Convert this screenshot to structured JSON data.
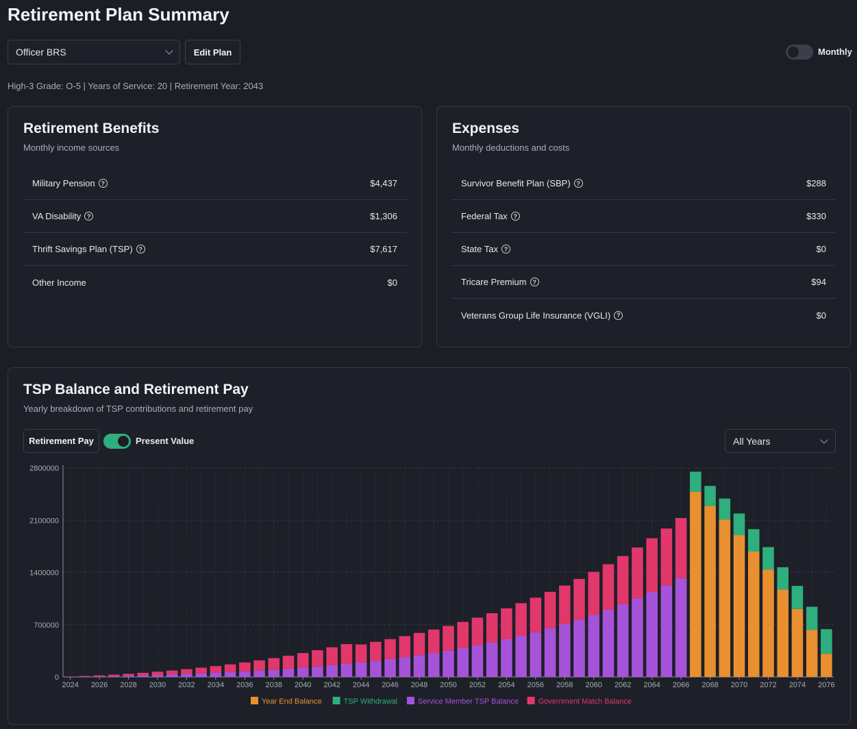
{
  "page": {
    "title": "Retirement Plan Summary",
    "summary": "High-3 Grade: O-5 | Years of Service: 20 | Retirement Year: 2043"
  },
  "controls": {
    "plan_select": "Officer BRS",
    "edit_plan": "Edit Plan",
    "monthly_label": "Monthly",
    "monthly_on": false
  },
  "benefits": {
    "title": "Retirement Benefits",
    "subtitle": "Monthly income sources",
    "rows": [
      {
        "label": "Military Pension",
        "value": "$4,437",
        "help": true
      },
      {
        "label": "VA Disability",
        "value": "$1,306",
        "help": true
      },
      {
        "label": "Thrift Savings Plan (TSP)",
        "value": "$7,617",
        "help": true
      },
      {
        "label": "Other Income",
        "value": "$0",
        "help": false
      }
    ]
  },
  "expenses": {
    "title": "Expenses",
    "subtitle": "Monthly deductions and costs",
    "rows": [
      {
        "label": "Survivor Benefit Plan (SBP)",
        "value": "$288",
        "help": true
      },
      {
        "label": "Federal Tax",
        "value": "$330",
        "help": true
      },
      {
        "label": "State Tax",
        "value": "$0",
        "help": true
      },
      {
        "label": "Tricare Premium",
        "value": "$94",
        "help": true
      },
      {
        "label": "Veterans Group Life Insurance (VGLI)",
        "value": "$0",
        "help": true
      }
    ]
  },
  "tsp_chart": {
    "title": "TSP Balance and Retirement Pay",
    "subtitle": "Yearly breakdown of TSP contributions and retirement pay",
    "retirement_pay_button": "Retirement Pay",
    "present_value_label": "Present Value",
    "present_value_on": true,
    "range_select": "All Years"
  },
  "chart_data": {
    "type": "bar",
    "stacked": true,
    "x": [
      2024,
      2025,
      2026,
      2027,
      2028,
      2029,
      2030,
      2031,
      2032,
      2033,
      2034,
      2035,
      2036,
      2037,
      2038,
      2039,
      2040,
      2041,
      2042,
      2043,
      2044,
      2045,
      2046,
      2047,
      2048,
      2049,
      2050,
      2051,
      2052,
      2053,
      2054,
      2055,
      2056,
      2057,
      2058,
      2059,
      2060,
      2061,
      2062,
      2063,
      2064,
      2065,
      2066,
      2067,
      2068,
      2069,
      2070,
      2071,
      2072,
      2073,
      2074,
      2075,
      2076
    ],
    "x_tick_labels": [
      "2024",
      "2026",
      "2028",
      "2030",
      "2032",
      "2034",
      "2036",
      "2038",
      "2040",
      "2042",
      "2044",
      "2046",
      "2048",
      "2050",
      "2052",
      "2054",
      "2056",
      "2058",
      "2060",
      "2062",
      "2064",
      "2066",
      "2068",
      "2070",
      "2072",
      "2074",
      "2076"
    ],
    "y_ticks": [
      0,
      700000,
      1400000,
      2100000,
      2800000
    ],
    "ylim": [
      0,
      2800000
    ],
    "grid": true,
    "legend_position": "bottom",
    "series": [
      {
        "name": "Year End Balance",
        "color": "#e8902f",
        "values": [
          0,
          0,
          0,
          0,
          0,
          0,
          0,
          0,
          0,
          0,
          0,
          0,
          0,
          0,
          0,
          0,
          0,
          0,
          0,
          0,
          0,
          0,
          0,
          0,
          0,
          0,
          0,
          0,
          0,
          0,
          0,
          0,
          0,
          0,
          0,
          0,
          0,
          0,
          0,
          0,
          0,
          0,
          0,
          2480000,
          2290000,
          2110000,
          1900000,
          1680000,
          1440000,
          1170000,
          910000,
          630000,
          310000
        ]
      },
      {
        "name": "TSP Withdrawal",
        "color": "#2fae7e",
        "values": [
          0,
          0,
          0,
          0,
          0,
          0,
          0,
          0,
          0,
          0,
          0,
          0,
          0,
          0,
          0,
          0,
          0,
          0,
          0,
          0,
          0,
          0,
          0,
          0,
          0,
          0,
          0,
          0,
          0,
          0,
          0,
          0,
          0,
          0,
          0,
          0,
          0,
          0,
          0,
          0,
          0,
          0,
          0,
          270000,
          270000,
          280000,
          290000,
          300000,
          300000,
          300000,
          310000,
          310000,
          330000
        ]
      },
      {
        "name": "Service Member TSP Balance",
        "color": "#a653d9",
        "values": [
          2000,
          5000,
          8000,
          12000,
          16000,
          21000,
          27000,
          33000,
          40000,
          48000,
          56000,
          65000,
          75000,
          86000,
          98000,
          111000,
          125000,
          140000,
          157000,
          175000,
          195000,
          216000,
          240000,
          265000,
          292000,
          321000,
          352000,
          386000,
          423000,
          462000,
          505000,
          550000,
          599000,
          651000,
          707000,
          767000,
          831000,
          900000,
          974000,
          1053000,
          1138000,
          1228000,
          1325000,
          0,
          0,
          0,
          0,
          0,
          0,
          0,
          0,
          0,
          0
        ]
      },
      {
        "name": "Government Match Balance",
        "color": "#e2376b",
        "values": [
          4000,
          8000,
          13000,
          19000,
          26000,
          34000,
          43000,
          53000,
          64000,
          76000,
          89000,
          103000,
          119000,
          136000,
          154000,
          173000,
          195000,
          218000,
          240000,
          265000,
          240000,
          254000,
          267000,
          282000,
          298000,
          314000,
          332000,
          351000,
          371000,
          392000,
          414000,
          438000,
          463000,
          489000,
          517000,
          546000,
          577000,
          610000,
          645000,
          681000,
          720000,
          761000,
          804000,
          0,
          0,
          0,
          0,
          0,
          0,
          0,
          0,
          0,
          0
        ]
      }
    ]
  }
}
